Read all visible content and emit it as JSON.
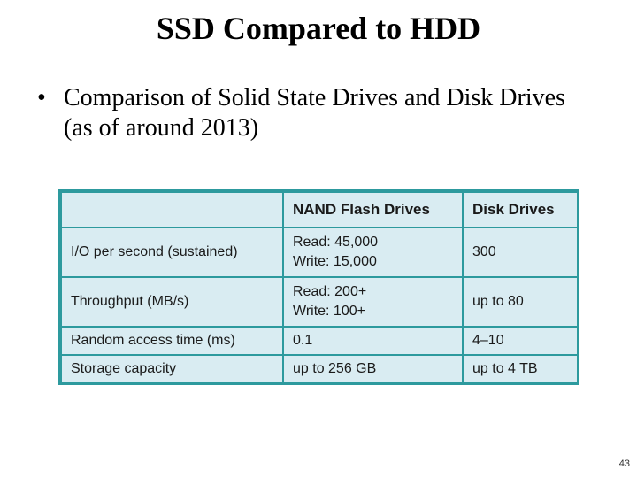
{
  "slide": {
    "title": "SSD Compared to HDD",
    "bullet_symbol": "•",
    "bullet_text": "Comparison of Solid State Drives and Disk Drives (as of around 2013)",
    "page_number": "43"
  },
  "table": {
    "headers": [
      "",
      "NAND Flash Drives",
      "Disk Drives"
    ],
    "rows": [
      {
        "label": "I/O per second (sustained)",
        "flash": [
          "Read: 45,000",
          "Write: 15,000"
        ],
        "disk": "300"
      },
      {
        "label": "Throughput (MB/s)",
        "flash": [
          "Read: 200+",
          "Write: 100+"
        ],
        "disk": "up to 80"
      },
      {
        "label": "Random access time (ms)",
        "flash": [
          "0.1"
        ],
        "disk": "4–10"
      },
      {
        "label": "Storage capacity",
        "flash": [
          "up to 256 GB"
        ],
        "disk": "up to 4 TB"
      }
    ]
  },
  "colors": {
    "table_border": "#2d9a9e",
    "cell_background": "#d9ecf2"
  }
}
